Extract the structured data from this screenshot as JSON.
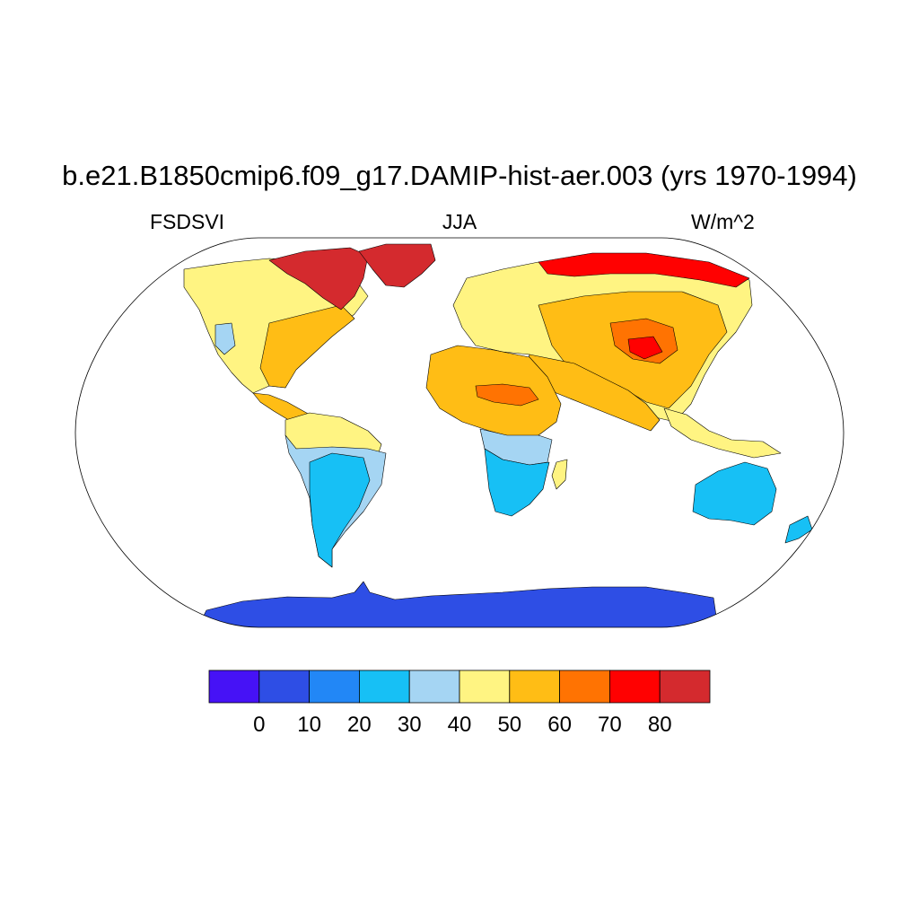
{
  "header": {
    "title": "b.e21.B1850cmip6.f09_g17.DAMIP-hist-aer.003 (yrs 1970-1994)",
    "variable": "FSDSVI",
    "season": "JJA",
    "units": "W/m^2"
  },
  "map": {
    "projection": "Robinson",
    "field": "FSDSVI"
  },
  "colorbar": {
    "levels": [
      "0",
      "10",
      "20",
      "30",
      "40",
      "50",
      "60",
      "70",
      "80"
    ],
    "colors": [
      "#4612f6",
      "#2e4ee5",
      "#2287f6",
      "#17c0f5",
      "#a5d5f3",
      "#fff482",
      "#ffbd15",
      "#ff7302",
      "#ff0101",
      "#d42a2e"
    ]
  }
}
